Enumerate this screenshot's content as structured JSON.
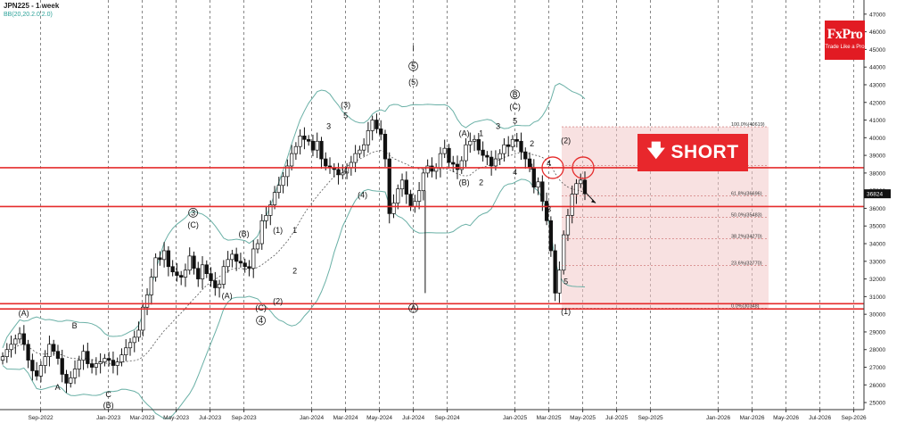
{
  "header": {
    "instrument": "JPN225 - 1 week",
    "indicator": "BB(20,20.2.0.2.0)"
  },
  "logo": {
    "name": "FxPro",
    "tagline": "Trade Like a Pro"
  },
  "signal": {
    "label": "SHORT",
    "icon": "down-arrow-icon",
    "color": "#e8272c"
  },
  "chart_data": {
    "type": "candlestick",
    "title": "JPN225 - 1 week",
    "y_axis_ticks": [
      "47000",
      "46000",
      "45000",
      "44000",
      "43000",
      "42000",
      "41000",
      "40000",
      "39000",
      "38000",
      "37000",
      "36000",
      "35000",
      "34000",
      "33000",
      "32000",
      "31000",
      "30000",
      "29000",
      "28000",
      "27000",
      "26000",
      "25000"
    ],
    "ylim": [
      24600,
      47800
    ],
    "x_axis_ticks": [
      "Sep-2022",
      "Jan-2023",
      "Mar-2023",
      "May-2023",
      "Jul-2023",
      "Sep-2023",
      "Jan-2024",
      "Mar-2024",
      "May-2024",
      "Jul-2024",
      "Sep-2024",
      "Jan-2025",
      "Mar-2025",
      "May-2025",
      "Jul-2025",
      "Sep-2025",
      "Jan-2026",
      "Mar-2026",
      "May-2026",
      "Jul-2026",
      "Sep-2026"
    ],
    "current_price": "36824",
    "horizontal_levels": [
      38300,
      36100,
      30600,
      30300
    ],
    "fibonacci": [
      {
        "label": "100.0%(40619)",
        "value": 40619
      },
      {
        "label": "(38421)",
        "value": 38421
      },
      {
        "label": "61.8%(36696)",
        "value": 36696
      },
      {
        "label": "50.0%(35483)",
        "value": 35483
      },
      {
        "label": "38.2%(34270)",
        "value": 34270
      },
      {
        "label": "23.6%(32770)",
        "value": 32770
      },
      {
        "label": "0.0%(30348)",
        "value": 30348
      }
    ],
    "close_series": [
      27600,
      28000,
      28300,
      28600,
      28900,
      28300,
      27400,
      26800,
      26500,
      27100,
      27600,
      28300,
      27900,
      27500,
      26600,
      26100,
      26400,
      26900,
      27400,
      27900,
      27200,
      27000,
      27200,
      27300,
      27500,
      27400,
      27100,
      27300,
      27700,
      28100,
      28400,
      28700,
      29100,
      30400,
      31100,
      32100,
      33200,
      33100,
      33600,
      32700,
      32400,
      32200,
      32100,
      32500,
      33300,
      32600,
      32000,
      32800,
      32300,
      31900,
      31500,
      31700,
      32700,
      33100,
      33400,
      33000,
      32900,
      32700,
      32600,
      33700,
      34000,
      35300,
      35600,
      36200,
      36900,
      37300,
      37800,
      38400,
      39100,
      39500,
      40100,
      39900,
      39800,
      39300,
      39800,
      38800,
      38400,
      38300,
      38200,
      37900,
      38000,
      38300,
      38600,
      39100,
      39300,
      39600,
      40400,
      41000,
      40500,
      40200,
      38800,
      35700,
      36300,
      37100,
      37600,
      36800,
      36100,
      36400,
      37000,
      38000,
      38400,
      38100,
      38300,
      39100,
      39400,
      38600,
      38500,
      38200,
      38700,
      39600,
      39800,
      39900,
      39300,
      39000,
      38900,
      38400,
      38800,
      39100,
      39600,
      39500,
      39900,
      39800,
      39200,
      38800,
      38300,
      37200,
      37500,
      36400,
      35300,
      33600,
      31200,
      32500,
      34500,
      35600,
      36800,
      37400,
      37600,
      36824
    ],
    "wave_labels": [
      {
        "text": "(A)",
        "x_date": "Aug-2022",
        "price": 29900
      },
      {
        "text": "B",
        "x_date": "Nov-2022",
        "price": 29200
      },
      {
        "text": "A",
        "x_date": "Oct-2022",
        "price": 25700
      },
      {
        "text": "C",
        "x_date": "Jan-2023",
        "price": 25300
      },
      {
        "text": "(B)",
        "x_date": "Jan-2023",
        "price": 24700
      },
      {
        "text": "3",
        "x_date": "Jun-2023",
        "price": 35600,
        "circled": true
      },
      {
        "text": "(C)",
        "x_date": "Jun-2023",
        "price": 34900
      },
      {
        "text": "(A)",
        "x_date": "Aug-2023",
        "price": 30900
      },
      {
        "text": "(B)",
        "x_date": "Sep-2023",
        "price": 34400
      },
      {
        "text": "(C)",
        "x_date": "Oct-2023",
        "price": 30200
      },
      {
        "text": "4",
        "x_date": "Oct-2023",
        "price": 29500,
        "circled": true
      },
      {
        "text": "(1)",
        "x_date": "Nov-2023",
        "price": 34600
      },
      {
        "text": "1",
        "x_date": "Dec-2023",
        "price": 34600
      },
      {
        "text": "(2)",
        "x_date": "Nov-2023",
        "price": 30600
      },
      {
        "text": "2",
        "x_date": "Dec-2023",
        "price": 32300
      },
      {
        "text": "(3)",
        "x_date": "Mar-2024",
        "price": 41700
      },
      {
        "text": "5",
        "x_date": "Mar-2024",
        "price": 41100
      },
      {
        "text": "3",
        "x_date": "Feb-2024",
        "price": 40500
      },
      {
        "text": "4",
        "x_date": "Mar-2024",
        "price": 38000
      },
      {
        "text": "(4)",
        "x_date": "Apr-2024",
        "price": 36600
      },
      {
        "text": "I",
        "x_date": "Jul-2024",
        "price": 44900
      },
      {
        "text": "5",
        "x_date": "Jul-2024",
        "price": 43900,
        "circled": true
      },
      {
        "text": "(5)",
        "x_date": "Jul-2024",
        "price": 43000
      },
      {
        "text": "A",
        "x_date": "Jul-2024",
        "price": 30200,
        "circled": true
      },
      {
        "text": "(A)",
        "x_date": "Oct-2024",
        "price": 40100
      },
      {
        "text": "1",
        "x_date": "Nov-2024",
        "price": 40100
      },
      {
        "text": "(B)",
        "x_date": "Oct-2024",
        "price": 37300
      },
      {
        "text": "2",
        "x_date": "Nov-2024",
        "price": 37300
      },
      {
        "text": "B",
        "x_date": "Jan-2025",
        "price": 42300,
        "circled": true
      },
      {
        "text": "(C)",
        "x_date": "Jan-2025",
        "price": 41600
      },
      {
        "text": "5",
        "x_date": "Jan-2025",
        "price": 40800
      },
      {
        "text": "3",
        "x_date": "Dec-2024",
        "price": 40500
      },
      {
        "text": "2",
        "x_date": "Feb-2025",
        "price": 39500
      },
      {
        "text": "1",
        "x_date": "Feb-2025",
        "price": 38200
      },
      {
        "text": "4",
        "x_date": "Jan-2025",
        "price": 37900
      },
      {
        "text": "4",
        "x_date": "Mar-2025",
        "price": 38400
      },
      {
        "text": "3",
        "x_date": "Mar-2025",
        "price": 35800
      },
      {
        "text": "5",
        "x_date": "Apr-2025",
        "price": 31700
      },
      {
        "text": "(1)",
        "x_date": "Apr-2025",
        "price": 30000
      },
      {
        "text": "(2)",
        "x_date": "Apr-2025",
        "price": 39700
      }
    ]
  }
}
